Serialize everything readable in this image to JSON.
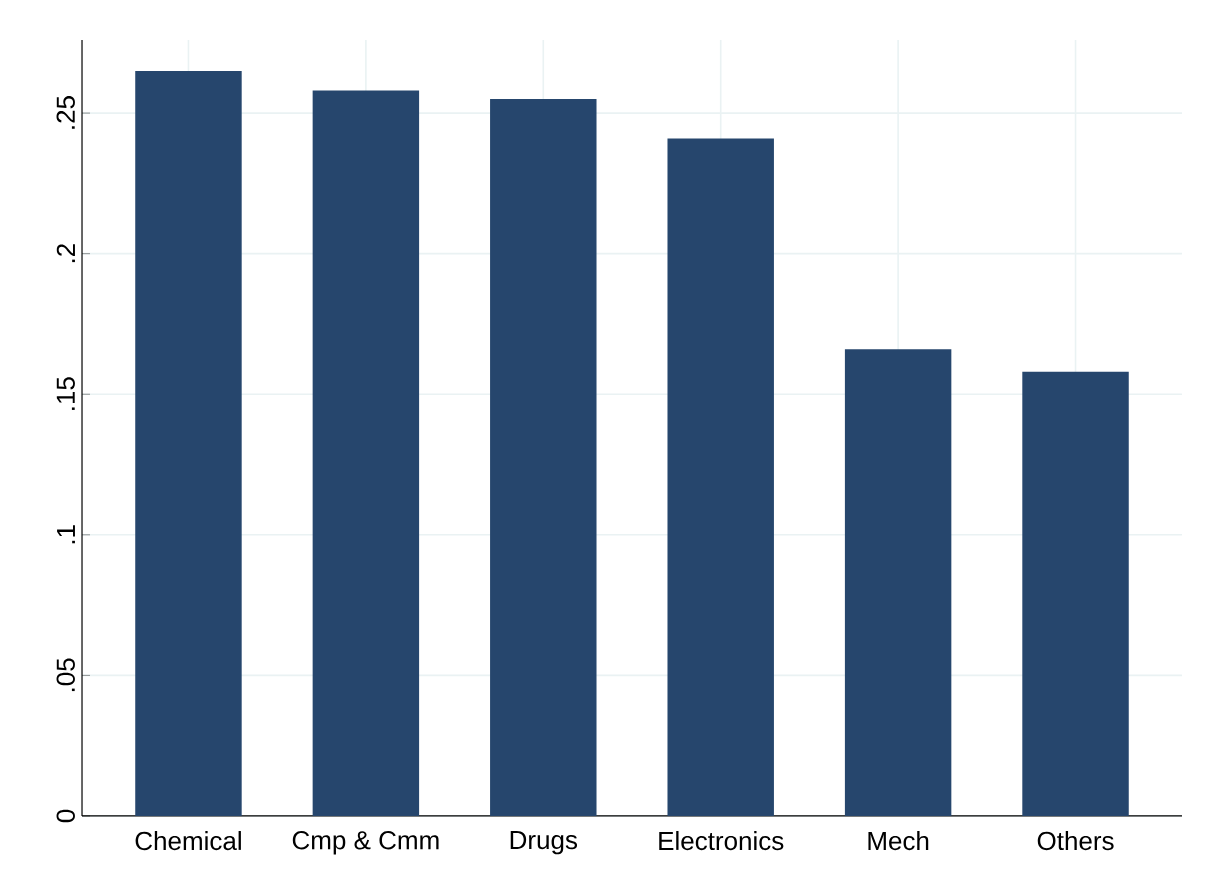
{
  "chart_data": {
    "type": "bar",
    "categories": [
      "Chemical",
      "Cmp & Cmm",
      "Drugs",
      "Electronics",
      "Mech",
      "Others"
    ],
    "values": [
      0.265,
      0.258,
      0.255,
      0.241,
      0.166,
      0.158
    ],
    "color": "#26466d",
    "ylim": [
      0,
      0.276
    ],
    "yticks": [
      {
        "value": 0,
        "label": "0"
      },
      {
        "value": 0.05,
        "label": ".05"
      },
      {
        "value": 0.1,
        "label": ".1"
      },
      {
        "value": 0.15,
        "label": ".15"
      },
      {
        "value": 0.2,
        "label": ".2"
      },
      {
        "value": 0.25,
        "label": ".25"
      }
    ],
    "grid": true
  }
}
